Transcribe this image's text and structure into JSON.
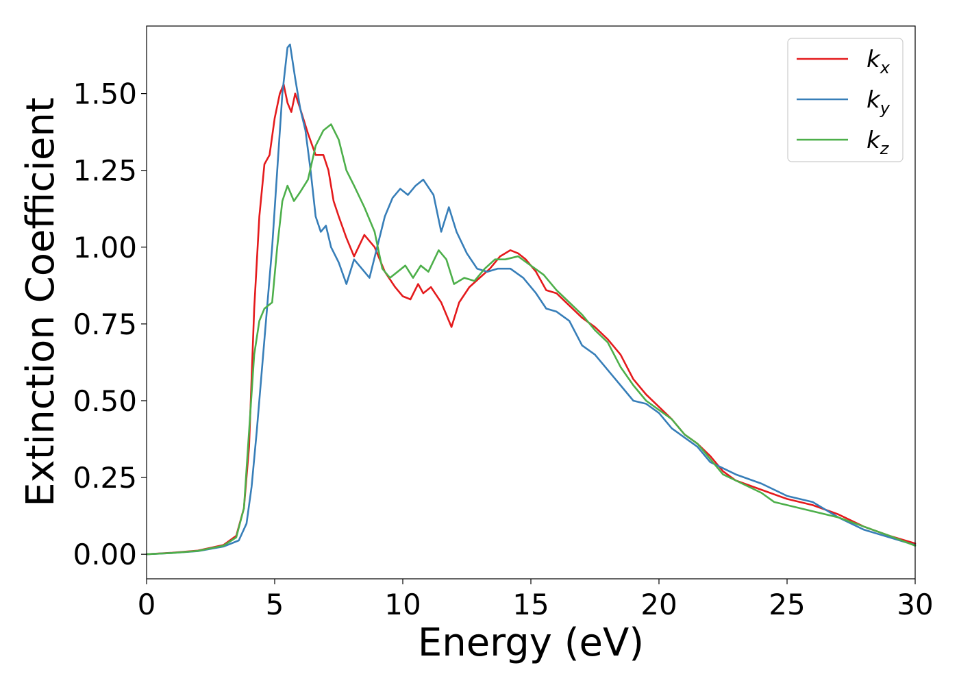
{
  "chart_data": {
    "type": "line",
    "xlabel": "Energy (eV)",
    "ylabel": "Extinction Coefficient",
    "xlim": [
      0,
      30
    ],
    "ylim": [
      -0.08,
      1.72
    ],
    "xticks": [
      0,
      5,
      10,
      15,
      20,
      25,
      30
    ],
    "xtick_labels": [
      "0",
      "5",
      "10",
      "15",
      "20",
      "25",
      "30"
    ],
    "yticks": [
      0,
      0.25,
      0.5,
      0.75,
      1.0,
      1.25,
      1.5
    ],
    "ytick_labels": [
      "0.00",
      "0.25",
      "0.50",
      "0.75",
      "1.00",
      "1.25",
      "1.50"
    ],
    "grid": false,
    "legend_position": "top-right",
    "series": [
      {
        "name": "k",
        "subscript": "x",
        "color": "#e41a1c",
        "points": [
          [
            0,
            0
          ],
          [
            1,
            0.005
          ],
          [
            2,
            0.012
          ],
          [
            3,
            0.03
          ],
          [
            3.5,
            0.06
          ],
          [
            3.8,
            0.15
          ],
          [
            4.0,
            0.35
          ],
          [
            4.2,
            0.8
          ],
          [
            4.4,
            1.1
          ],
          [
            4.6,
            1.27
          ],
          [
            4.8,
            1.3
          ],
          [
            5.0,
            1.42
          ],
          [
            5.2,
            1.5
          ],
          [
            5.35,
            1.53
          ],
          [
            5.5,
            1.47
          ],
          [
            5.65,
            1.44
          ],
          [
            5.8,
            1.5
          ],
          [
            6.0,
            1.45
          ],
          [
            6.3,
            1.37
          ],
          [
            6.6,
            1.3
          ],
          [
            6.9,
            1.3
          ],
          [
            7.1,
            1.25
          ],
          [
            7.3,
            1.15
          ],
          [
            7.5,
            1.1
          ],
          [
            7.8,
            1.03
          ],
          [
            8.1,
            0.97
          ],
          [
            8.5,
            1.04
          ],
          [
            8.9,
            1.0
          ],
          [
            9.3,
            0.92
          ],
          [
            9.7,
            0.87
          ],
          [
            10.0,
            0.84
          ],
          [
            10.3,
            0.83
          ],
          [
            10.6,
            0.88
          ],
          [
            10.8,
            0.85
          ],
          [
            11.1,
            0.87
          ],
          [
            11.5,
            0.82
          ],
          [
            11.9,
            0.74
          ],
          [
            12.2,
            0.82
          ],
          [
            12.6,
            0.87
          ],
          [
            13.0,
            0.9
          ],
          [
            13.4,
            0.93
          ],
          [
            13.8,
            0.97
          ],
          [
            14.2,
            0.99
          ],
          [
            14.5,
            0.98
          ],
          [
            14.8,
            0.96
          ],
          [
            15.2,
            0.92
          ],
          [
            15.6,
            0.86
          ],
          [
            16.0,
            0.85
          ],
          [
            16.5,
            0.81
          ],
          [
            17.0,
            0.77
          ],
          [
            17.5,
            0.74
          ],
          [
            18.0,
            0.7
          ],
          [
            18.5,
            0.65
          ],
          [
            19.0,
            0.57
          ],
          [
            19.5,
            0.52
          ],
          [
            20.0,
            0.48
          ],
          [
            20.5,
            0.44
          ],
          [
            21.0,
            0.39
          ],
          [
            21.5,
            0.36
          ],
          [
            22.0,
            0.32
          ],
          [
            22.5,
            0.27
          ],
          [
            23.0,
            0.24
          ],
          [
            24.0,
            0.21
          ],
          [
            25.0,
            0.18
          ],
          [
            26.0,
            0.16
          ],
          [
            27.0,
            0.13
          ],
          [
            28.0,
            0.09
          ],
          [
            29.0,
            0.06
          ],
          [
            30.0,
            0.035
          ]
        ]
      },
      {
        "name": "k",
        "subscript": "y",
        "color": "#377eb8",
        "points": [
          [
            0,
            0
          ],
          [
            1,
            0.004
          ],
          [
            2,
            0.01
          ],
          [
            3,
            0.025
          ],
          [
            3.6,
            0.045
          ],
          [
            3.9,
            0.1
          ],
          [
            4.1,
            0.22
          ],
          [
            4.3,
            0.4
          ],
          [
            4.5,
            0.6
          ],
          [
            4.7,
            0.8
          ],
          [
            4.9,
            1.0
          ],
          [
            5.1,
            1.25
          ],
          [
            5.3,
            1.5
          ],
          [
            5.5,
            1.65
          ],
          [
            5.6,
            1.66
          ],
          [
            5.8,
            1.55
          ],
          [
            6.0,
            1.45
          ],
          [
            6.2,
            1.38
          ],
          [
            6.4,
            1.25
          ],
          [
            6.6,
            1.1
          ],
          [
            6.8,
            1.05
          ],
          [
            7.0,
            1.07
          ],
          [
            7.2,
            1.0
          ],
          [
            7.5,
            0.95
          ],
          [
            7.8,
            0.88
          ],
          [
            8.1,
            0.96
          ],
          [
            8.4,
            0.93
          ],
          [
            8.7,
            0.9
          ],
          [
            9.0,
            1.0
          ],
          [
            9.3,
            1.1
          ],
          [
            9.6,
            1.16
          ],
          [
            9.9,
            1.19
          ],
          [
            10.2,
            1.17
          ],
          [
            10.5,
            1.2
          ],
          [
            10.8,
            1.22
          ],
          [
            11.2,
            1.17
          ],
          [
            11.5,
            1.05
          ],
          [
            11.8,
            1.13
          ],
          [
            12.1,
            1.05
          ],
          [
            12.5,
            0.98
          ],
          [
            12.9,
            0.93
          ],
          [
            13.3,
            0.92
          ],
          [
            13.7,
            0.93
          ],
          [
            14.2,
            0.93
          ],
          [
            14.7,
            0.9
          ],
          [
            15.2,
            0.85
          ],
          [
            15.6,
            0.8
          ],
          [
            16.0,
            0.79
          ],
          [
            16.5,
            0.76
          ],
          [
            17.0,
            0.68
          ],
          [
            17.5,
            0.65
          ],
          [
            18.0,
            0.6
          ],
          [
            18.5,
            0.55
          ],
          [
            19.0,
            0.5
          ],
          [
            19.5,
            0.49
          ],
          [
            20.0,
            0.46
          ],
          [
            20.5,
            0.41
          ],
          [
            21.0,
            0.38
          ],
          [
            21.5,
            0.35
          ],
          [
            22.0,
            0.3
          ],
          [
            22.5,
            0.28
          ],
          [
            23.0,
            0.26
          ],
          [
            24.0,
            0.23
          ],
          [
            25.0,
            0.19
          ],
          [
            26.0,
            0.17
          ],
          [
            27.0,
            0.12
          ],
          [
            28.0,
            0.08
          ],
          [
            29.0,
            0.055
          ],
          [
            30.0,
            0.03
          ]
        ]
      },
      {
        "name": "k",
        "subscript": "z",
        "color": "#4daf4a",
        "points": [
          [
            0,
            0
          ],
          [
            1,
            0.004
          ],
          [
            2,
            0.011
          ],
          [
            3,
            0.028
          ],
          [
            3.5,
            0.055
          ],
          [
            3.8,
            0.15
          ],
          [
            4.0,
            0.4
          ],
          [
            4.2,
            0.65
          ],
          [
            4.4,
            0.76
          ],
          [
            4.6,
            0.8
          ],
          [
            4.9,
            0.82
          ],
          [
            5.1,
            1.0
          ],
          [
            5.3,
            1.15
          ],
          [
            5.5,
            1.2
          ],
          [
            5.75,
            1.15
          ],
          [
            6.0,
            1.18
          ],
          [
            6.3,
            1.22
          ],
          [
            6.6,
            1.33
          ],
          [
            6.9,
            1.38
          ],
          [
            7.2,
            1.4
          ],
          [
            7.5,
            1.35
          ],
          [
            7.8,
            1.25
          ],
          [
            8.1,
            1.2
          ],
          [
            8.5,
            1.13
          ],
          [
            8.9,
            1.05
          ],
          [
            9.2,
            0.93
          ],
          [
            9.5,
            0.9
          ],
          [
            9.8,
            0.92
          ],
          [
            10.1,
            0.94
          ],
          [
            10.4,
            0.9
          ],
          [
            10.7,
            0.94
          ],
          [
            11.0,
            0.92
          ],
          [
            11.4,
            0.99
          ],
          [
            11.7,
            0.96
          ],
          [
            12.0,
            0.88
          ],
          [
            12.4,
            0.9
          ],
          [
            12.8,
            0.89
          ],
          [
            13.2,
            0.93
          ],
          [
            13.6,
            0.96
          ],
          [
            14.0,
            0.96
          ],
          [
            14.5,
            0.97
          ],
          [
            15.0,
            0.94
          ],
          [
            15.5,
            0.91
          ],
          [
            16.0,
            0.86
          ],
          [
            16.5,
            0.82
          ],
          [
            17.0,
            0.78
          ],
          [
            17.5,
            0.73
          ],
          [
            18.0,
            0.69
          ],
          [
            18.5,
            0.61
          ],
          [
            19.0,
            0.55
          ],
          [
            19.5,
            0.5
          ],
          [
            20.0,
            0.47
          ],
          [
            20.5,
            0.44
          ],
          [
            21.0,
            0.39
          ],
          [
            21.5,
            0.36
          ],
          [
            22.0,
            0.31
          ],
          [
            22.5,
            0.26
          ],
          [
            23.0,
            0.24
          ],
          [
            24.0,
            0.2
          ],
          [
            24.5,
            0.17
          ],
          [
            25.0,
            0.16
          ],
          [
            26.0,
            0.14
          ],
          [
            27.0,
            0.12
          ],
          [
            28.0,
            0.09
          ],
          [
            29.0,
            0.06
          ],
          [
            30.0,
            0.028
          ]
        ]
      }
    ]
  }
}
